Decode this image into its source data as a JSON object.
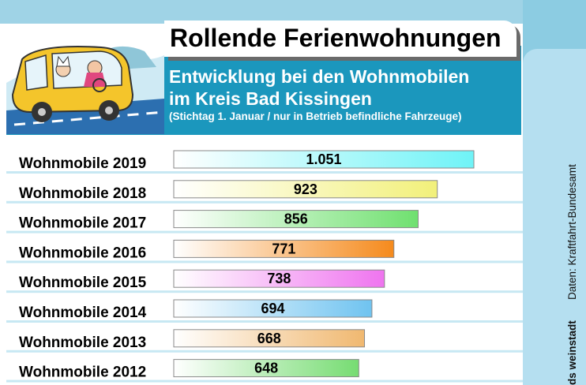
{
  "title": "Rollende Ferienwohnungen",
  "subtitle_line1": "Entwicklung bei den Wohnmobilen",
  "subtitle_line2": "im Kreis Bad Kissingen",
  "subtitle_note": "(Stichtag 1. Januar / nur in Betrieb befindliche Fahrzeuge)",
  "source": "Daten: Kraftfahrt-Bundesamt",
  "brand": "ds weinstadt",
  "colors": {
    "band": "#1b97bd",
    "frame": "#8ccce2",
    "bar_2019": "#6ff3f7",
    "bar_2018": "#f2f07a",
    "bar_2017": "#6fe06f",
    "bar_2016": "#f58a1c",
    "bar_2015": "#ef74ef",
    "bar_2014": "#6fc3f0",
    "bar_2013": "#f0b870",
    "bar_2012": "#76dc72"
  },
  "chart_data": {
    "type": "bar",
    "orientation": "horizontal",
    "categories": [
      "Wohnmobile 2019",
      "Wohnmobile 2018",
      "Wohnmobile 2017",
      "Wohnmobile 2016",
      "Wohnmobile 2015",
      "Wohnmobile 2014",
      "Wohnmobile 2013",
      "Wohnmobile 2012"
    ],
    "values": [
      1051,
      923,
      856,
      771,
      738,
      694,
      668,
      648
    ],
    "data_labels": [
      "1.051",
      "923",
      "856",
      "771",
      "738",
      "694",
      "668",
      "648"
    ],
    "bar_colors": [
      "#6ff3f7",
      "#f2f07a",
      "#6fe06f",
      "#f58a1c",
      "#ef74ef",
      "#6fc3f0",
      "#f0b870",
      "#76dc72"
    ],
    "xlim": [
      0,
      1051
    ],
    "grid": false,
    "legend": "none"
  }
}
